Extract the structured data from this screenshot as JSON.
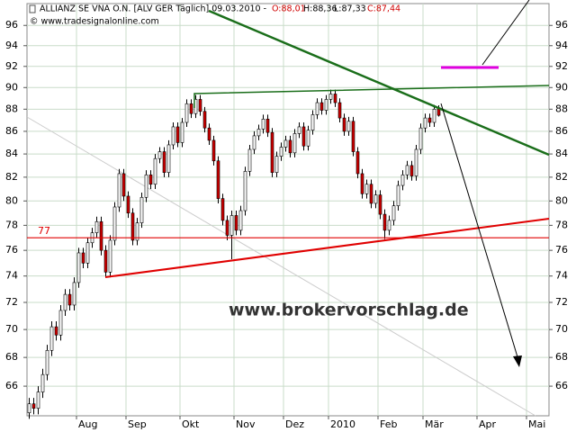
{
  "chart_data": {
    "type": "candlestick",
    "title": "ALLIANZ SE VNA O.N. [ALV GER  Täglich] 09.03.2010 -",
    "ohlc_labels": [
      "O:88,01",
      "H:88,36",
      "L:87,33",
      "C:87,44"
    ],
    "copyright": "© www.tradesignalonline.com",
    "watermark": "www.brokervorschlag.de",
    "log_scale": true,
    "grid": true,
    "up_color": "#ffffff",
    "down_color": "#cc0000",
    "hline": 77,
    "hline_color": "#e00000",
    "ylim": [
      64,
      98.2
    ],
    "yticks": [
      66,
      68,
      70,
      72,
      74,
      76,
      78,
      80,
      82,
      84,
      86,
      88,
      90,
      92,
      94,
      96
    ],
    "categories": [
      null,
      null,
      null,
      null,
      null,
      null,
      null,
      null,
      null,
      null,
      null,
      "Aug",
      null,
      null,
      null,
      null,
      null,
      null,
      null,
      null,
      null,
      null,
      "Sep",
      null,
      null,
      null,
      null,
      null,
      null,
      null,
      null,
      null,
      null,
      null,
      "Okt",
      null,
      null,
      null,
      null,
      null,
      null,
      null,
      null,
      null,
      null,
      null,
      "Nov",
      null,
      null,
      null,
      null,
      null,
      null,
      null,
      null,
      null,
      null,
      "Dez",
      null,
      null,
      null,
      null,
      null,
      null,
      null,
      null,
      null,
      "2010",
      null,
      null,
      null,
      null,
      null,
      null,
      null,
      null,
      null,
      null,
      "Feb",
      null,
      null,
      null,
      null,
      null,
      null,
      null,
      null,
      null,
      "Mär",
      null,
      null,
      null,
      null,
      null,
      null,
      null,
      null,
      null,
      null,
      null,
      "Apr",
      null,
      null,
      null,
      null,
      null,
      null,
      null,
      null,
      null,
      null,
      "Mai",
      null,
      null,
      null,
      null
    ],
    "open": [
      64.2,
      64.8,
      64.5,
      65.6,
      66.8,
      68.5,
      70.2,
      69.6,
      71.4,
      72.6,
      71.8,
      73.5,
      75.8,
      75.0,
      76.6,
      77.4,
      78.3,
      76.0,
      74.3,
      76.8,
      79.5,
      82.3,
      80.4,
      79.0,
      76.8,
      78.2,
      80.3,
      82.2,
      81.4,
      83.6,
      84.2,
      82.4,
      84.8,
      86.4,
      85.0,
      86.8,
      88.5,
      87.6,
      88.9,
      87.8,
      86.3,
      85.2,
      83.4,
      80.2,
      78.4,
      77.2,
      78.8,
      77.6,
      79.2,
      82.5,
      84.4,
      85.6,
      86.2,
      87.1,
      85.9,
      82.4,
      83.8,
      84.6,
      85.2,
      84.1,
      85.8,
      86.4,
      84.7,
      86.1,
      87.5,
      88.6,
      87.9,
      88.9,
      89.4,
      88.6,
      87.2,
      86.0,
      86.9,
      84.2,
      82.3,
      80.6,
      81.4,
      79.8,
      80.5,
      78.9,
      77.6,
      78.4,
      79.6,
      81.3,
      82.2,
      83.0,
      82.1,
      84.4,
      86.3,
      87.2,
      86.8,
      88.01,
      null,
      null,
      null,
      null,
      null,
      null,
      null,
      null,
      null,
      null,
      null,
      null,
      null,
      null,
      null,
      null,
      null,
      null,
      null,
      null,
      null,
      null,
      null,
      null
    ],
    "high": [
      65.2,
      65.2,
      66.0,
      67.2,
      68.9,
      70.6,
      70.6,
      71.8,
      73.0,
      73.0,
      73.9,
      76.2,
      76.2,
      77.0,
      77.8,
      78.7,
      78.7,
      76.4,
      77.2,
      79.9,
      82.7,
      82.7,
      80.8,
      79.4,
      78.6,
      80.7,
      82.6,
      82.6,
      84.0,
      84.6,
      84.6,
      85.2,
      86.8,
      86.8,
      87.2,
      88.9,
      88.9,
      89.3,
      89.3,
      88.2,
      86.7,
      85.6,
      83.8,
      80.6,
      78.8,
      79.2,
      79.2,
      79.6,
      82.9,
      84.8,
      86.0,
      86.6,
      87.5,
      87.5,
      86.3,
      84.2,
      85.0,
      85.6,
      85.6,
      86.2,
      86.8,
      86.8,
      86.5,
      87.9,
      89.0,
      89.0,
      89.3,
      89.8,
      89.8,
      89.0,
      87.6,
      87.3,
      87.3,
      84.6,
      82.7,
      81.8,
      81.8,
      80.9,
      80.9,
      79.3,
      78.8,
      80.0,
      81.7,
      82.6,
      83.4,
      83.4,
      84.8,
      86.7,
      87.6,
      87.6,
      88.4,
      88.36,
      null,
      null,
      null,
      null,
      null,
      null,
      null,
      null,
      null,
      null,
      null,
      null,
      null,
      null,
      null,
      null,
      null,
      null,
      null,
      null,
      null,
      null,
      null,
      null
    ],
    "low": [
      63.8,
      64.1,
      64.1,
      65.2,
      66.4,
      68.1,
      69.2,
      69.2,
      71.0,
      71.4,
      71.4,
      73.1,
      74.6,
      74.6,
      76.2,
      77.0,
      75.6,
      73.9,
      73.9,
      76.4,
      79.1,
      80.0,
      78.6,
      76.4,
      76.4,
      77.8,
      79.9,
      81.0,
      81.0,
      83.2,
      82.0,
      82.0,
      84.4,
      84.6,
      84.6,
      86.4,
      87.2,
      87.2,
      87.4,
      85.9,
      84.8,
      83.0,
      79.8,
      78.0,
      76.8,
      75.3,
      77.2,
      77.2,
      78.8,
      82.1,
      84.0,
      85.2,
      85.8,
      85.5,
      82.0,
      82.0,
      83.4,
      84.2,
      83.7,
      83.7,
      85.4,
      84.3,
      84.3,
      85.7,
      87.1,
      87.5,
      87.5,
      88.5,
      88.2,
      86.8,
      85.6,
      85.6,
      83.8,
      81.9,
      80.2,
      80.2,
      79.4,
      79.4,
      78.5,
      76.9,
      77.2,
      78.0,
      79.2,
      80.9,
      81.8,
      81.7,
      81.7,
      84.0,
      85.9,
      86.4,
      86.4,
      87.33,
      null,
      null,
      null,
      null,
      null,
      null,
      null,
      null,
      null,
      null,
      null,
      null,
      null,
      null,
      null,
      null,
      null,
      null,
      null,
      null,
      null,
      null,
      null,
      null
    ],
    "close": [
      64.8,
      64.5,
      65.6,
      66.8,
      68.5,
      70.2,
      69.6,
      71.4,
      72.6,
      71.8,
      73.5,
      75.8,
      75.0,
      76.6,
      77.4,
      78.3,
      76.0,
      74.3,
      76.8,
      79.5,
      82.3,
      80.4,
      79.0,
      76.8,
      78.2,
      80.3,
      82.2,
      81.4,
      83.6,
      84.2,
      82.4,
      84.8,
      86.4,
      85.0,
      86.8,
      88.5,
      87.6,
      88.9,
      87.8,
      86.3,
      85.2,
      83.4,
      80.2,
      78.4,
      77.2,
      78.8,
      77.6,
      79.2,
      82.5,
      84.4,
      85.6,
      86.2,
      87.1,
      85.9,
      82.4,
      83.8,
      84.6,
      85.2,
      84.1,
      85.8,
      86.4,
      84.7,
      86.1,
      87.5,
      88.6,
      87.9,
      88.9,
      89.4,
      88.6,
      87.2,
      86.0,
      86.9,
      84.2,
      82.3,
      80.6,
      81.4,
      79.8,
      80.5,
      78.9,
      77.6,
      78.4,
      79.6,
      81.3,
      82.2,
      83.0,
      82.1,
      84.4,
      86.3,
      87.2,
      86.8,
      88.0,
      87.44,
      null,
      null,
      null,
      null,
      null,
      null,
      null,
      null,
      null,
      null,
      null,
      null,
      null,
      null,
      null,
      null,
      null,
      null,
      null,
      null,
      null,
      null,
      null,
      null
    ]
  }
}
